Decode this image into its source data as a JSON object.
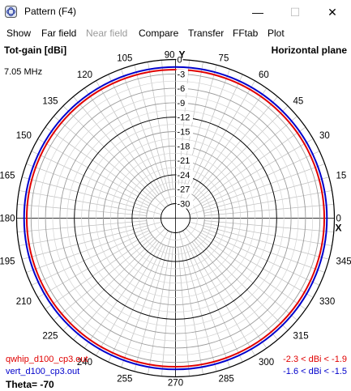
{
  "window": {
    "title": "Pattern   (F4)",
    "icon": "antenna-pattern-icon",
    "controls": {
      "minimize": "—",
      "maximize": "☐",
      "close": "✕"
    }
  },
  "menu": [
    "Show",
    "Far field",
    "Near field",
    "Compare",
    "Transfer",
    "FFtab",
    "Plot"
  ],
  "plot": {
    "quantity": "Tot-gain [dBi]",
    "frequency": "7.05 MHz",
    "plane": "Horizontal plane",
    "y_axis_label": "Y",
    "x_axis_label": "X",
    "theta_label": "Theta= -70",
    "ring_labels": [
      "0",
      "-3",
      "-6",
      "-9",
      "-12",
      "-15",
      "-18",
      "-21",
      "-24",
      "-27",
      "-30"
    ],
    "angle_labels": [
      "0",
      "15",
      "30",
      "45",
      "60",
      "75",
      "90",
      "105",
      "120",
      "135",
      "150",
      "165",
      "180",
      "195",
      "210",
      "225",
      "240",
      "255",
      "270",
      "285",
      "300",
      "315",
      "330",
      "345"
    ],
    "traces": [
      {
        "file": "qwhip_d100_cp3.out",
        "range": "-2.3 < dBi < -1.9",
        "color": "#e00000",
        "gain_dbi": -2.1
      },
      {
        "file": "vert_d100_cp3.out",
        "range": "-1.6 < dBi < -1.5",
        "color": "#0000cc",
        "gain_dbi": -1.55
      }
    ],
    "colors": {
      "grid": "#bdbdbd",
      "major_grid": "#000000",
      "highlight_ring": "#000000"
    }
  }
}
